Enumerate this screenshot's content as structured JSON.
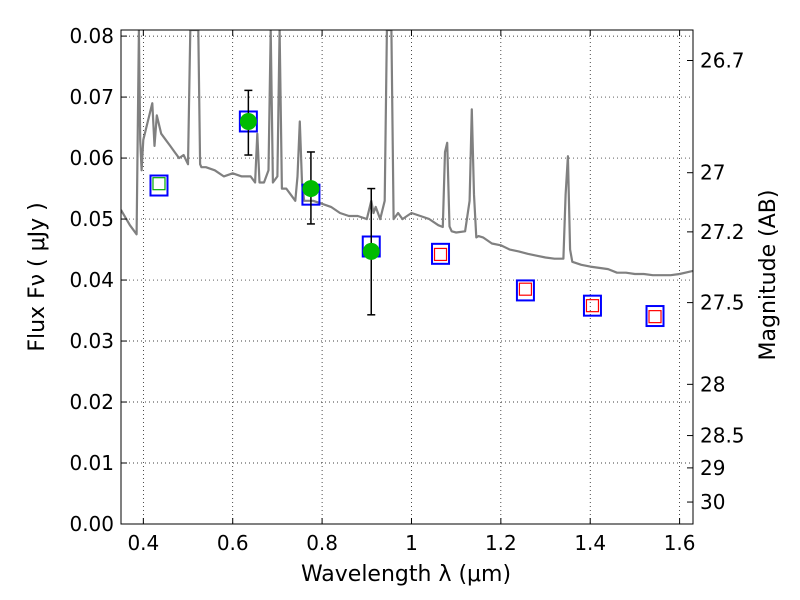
{
  "chart_data": {
    "type": "scatter",
    "title": "",
    "xlabel": "Wavelength  λ (μm)",
    "ylabel": "Flux  Fν  ( μJy )",
    "y2label": "Magnitude (AB)",
    "xlim": [
      0.35,
      1.63
    ],
    "ylim": [
      0.0,
      0.081
    ],
    "grid": true,
    "xticks": [
      0.4,
      0.6,
      0.8,
      1.0,
      1.2,
      1.4,
      1.6
    ],
    "xtick_labels": [
      "0.4",
      "0.6",
      "0.8",
      "1",
      "1.2",
      "1.4",
      "1.6"
    ],
    "yticks": [
      0.0,
      0.01,
      0.02,
      0.03,
      0.04,
      0.05,
      0.06,
      0.07,
      0.08
    ],
    "ytick_labels": [
      "0.00",
      "0.01",
      "0.02",
      "0.03",
      "0.04",
      "0.05",
      "0.06",
      "0.07",
      "0.08"
    ],
    "y2ticks": [
      {
        "label": "26.7",
        "flux": 0.076
      },
      {
        "label": "27",
        "flux": 0.0576
      },
      {
        "label": "27.2",
        "flux": 0.0479
      },
      {
        "label": "27.5",
        "flux": 0.0363
      },
      {
        "label": "28",
        "flux": 0.0229
      },
      {
        "label": "28.5",
        "flux": 0.0145
      },
      {
        "label": "29",
        "flux": 0.0092
      },
      {
        "label": "30",
        "flux": 0.0036
      }
    ],
    "series": [
      {
        "kind": "model_sed_line",
        "color": "#808080",
        "x": [
          0.35,
          0.37,
          0.38,
          0.385,
          0.39,
          0.393,
          0.396,
          0.4,
          0.41,
          0.42,
          0.425,
          0.43,
          0.44,
          0.45,
          0.46,
          0.47,
          0.48,
          0.49,
          0.5,
          0.505,
          0.51,
          0.513,
          0.516,
          0.52,
          0.523,
          0.527,
          0.53,
          0.54,
          0.56,
          0.58,
          0.6,
          0.62,
          0.64,
          0.65,
          0.655,
          0.66,
          0.67,
          0.68,
          0.685,
          0.69,
          0.7,
          0.705,
          0.71,
          0.72,
          0.73,
          0.74,
          0.745,
          0.75,
          0.755,
          0.76,
          0.78,
          0.8,
          0.82,
          0.84,
          0.86,
          0.88,
          0.9,
          0.91,
          0.915,
          0.92,
          0.93,
          0.94,
          0.945,
          0.95,
          0.955,
          0.96,
          0.97,
          0.98,
          0.99,
          1.0,
          1.02,
          1.04,
          1.06,
          1.07,
          1.075,
          1.08,
          1.085,
          1.09,
          1.1,
          1.12,
          1.13,
          1.135,
          1.14,
          1.145,
          1.15,
          1.16,
          1.18,
          1.2,
          1.22,
          1.24,
          1.26,
          1.28,
          1.3,
          1.32,
          1.34,
          1.345,
          1.35,
          1.355,
          1.36,
          1.38,
          1.4,
          1.42,
          1.44,
          1.46,
          1.48,
          1.5,
          1.52,
          1.54,
          1.56,
          1.58,
          1.6,
          1.63
        ],
        "y": [
          0.0515,
          0.049,
          0.048,
          0.0475,
          0.081,
          0.063,
          0.058,
          0.063,
          0.066,
          0.069,
          0.062,
          0.067,
          0.064,
          0.063,
          0.062,
          0.061,
          0.06,
          0.0605,
          0.059,
          0.081,
          0.081,
          0.081,
          0.081,
          0.081,
          0.081,
          0.059,
          0.0585,
          0.0585,
          0.058,
          0.057,
          0.0575,
          0.057,
          0.057,
          0.056,
          0.064,
          0.056,
          0.056,
          0.058,
          0.081,
          0.056,
          0.057,
          0.081,
          0.055,
          0.055,
          0.054,
          0.053,
          0.057,
          0.066,
          0.056,
          0.053,
          0.053,
          0.0525,
          0.052,
          0.051,
          0.0505,
          0.0505,
          0.05,
          0.053,
          0.051,
          0.052,
          0.05,
          0.053,
          0.081,
          0.081,
          0.081,
          0.05,
          0.051,
          0.05,
          0.0505,
          0.051,
          0.0505,
          0.05,
          0.049,
          0.0487,
          0.061,
          0.0625,
          0.0488,
          0.048,
          0.0478,
          0.048,
          0.053,
          0.068,
          0.054,
          0.047,
          0.0472,
          0.047,
          0.046,
          0.0457,
          0.045,
          0.0447,
          0.0443,
          0.044,
          0.0437,
          0.0435,
          0.0435,
          0.054,
          0.0603,
          0.045,
          0.043,
          0.0425,
          0.0422,
          0.042,
          0.0418,
          0.0412,
          0.0412,
          0.041,
          0.041,
          0.0408,
          0.0408,
          0.0408,
          0.041,
          0.0415
        ]
      },
      {
        "kind": "model_photometry",
        "marker": "blue-square",
        "color": "#0000ff",
        "x": [
          0.435,
          0.635,
          0.775,
          0.91,
          1.065,
          1.255,
          1.405,
          1.545
        ],
        "y": [
          0.0555,
          0.066,
          0.054,
          0.0455,
          0.0443,
          0.0383,
          0.0358,
          0.0341
        ]
      },
      {
        "kind": "upper_limits",
        "marker": "red-open-square",
        "color": "#ff0000",
        "x": [
          1.065,
          1.255,
          1.405,
          1.545
        ],
        "y": [
          0.0442,
          0.0385,
          0.0358,
          0.034
        ]
      },
      {
        "kind": "upper_limits_optical",
        "marker": "green-open-square",
        "color": "#00aa00",
        "x": [
          0.435
        ],
        "y": [
          0.0558
        ]
      },
      {
        "kind": "observed",
        "marker": "green-circle",
        "color": "#00bb00",
        "x": [
          0.635,
          0.775,
          0.91
        ],
        "y": [
          0.066,
          0.055,
          0.0447
        ],
        "yerr_low": [
          0.0605,
          0.0492,
          0.0343
        ],
        "yerr_high": [
          0.0711,
          0.061,
          0.055
        ]
      }
    ]
  }
}
